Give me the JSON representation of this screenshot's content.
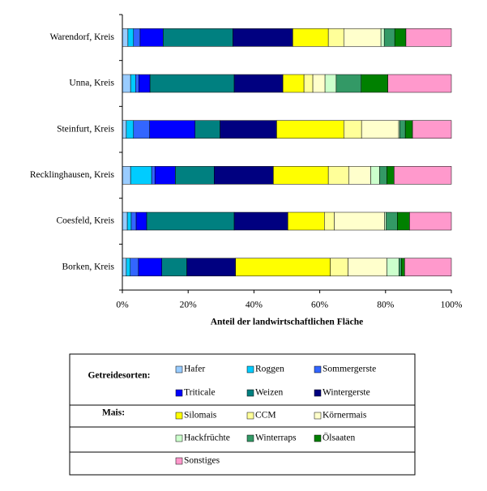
{
  "chart_data": {
    "type": "stacked-bar-horizontal",
    "categories": [
      "Warendorf, Kreis",
      "Unna, Kreis",
      "Steinfurt, Kreis",
      "Recklinghausen, Kreis",
      "Coesfeld, Kreis",
      "Borken, Kreis"
    ],
    "series": [
      {
        "name": "Hafer",
        "color": "#99ccff",
        "values": [
          1.7,
          2.5,
          1.2,
          2.5,
          1.5,
          1.2
        ]
      },
      {
        "name": "Roggen",
        "color": "#00ccff",
        "values": [
          1.7,
          1.5,
          2.2,
          6.4,
          1.2,
          1.2
        ]
      },
      {
        "name": "Sommergerste",
        "color": "#3366ff",
        "values": [
          2,
          1,
          4.9,
          1,
          1.5,
          2.5
        ]
      },
      {
        "name": "Triticale",
        "color": "#0000ff",
        "values": [
          7,
          3.4,
          13.8,
          6.2,
          3.2,
          7.1
        ]
      },
      {
        "name": "Weizen",
        "color": "#008080",
        "values": [
          21.2,
          25.6,
          7.6,
          11.8,
          26.6,
          7.6
        ]
      },
      {
        "name": "Wintergerste",
        "color": "#000080",
        "values": [
          18.2,
          14.8,
          17.2,
          18,
          16.3,
          14.8
        ]
      },
      {
        "name": "Silomais",
        "color": "#ffff00",
        "values": [
          10.8,
          6.4,
          20.4,
          16.7,
          11.1,
          28.8
        ]
      },
      {
        "name": "CCM",
        "color": "#ffff99",
        "values": [
          4.7,
          2.7,
          5.4,
          6.2,
          3,
          5.4
        ]
      },
      {
        "name": "Körnermais",
        "color": "#ffffcc",
        "values": [
          11.3,
          3.7,
          11.3,
          6.7,
          15.3,
          11.8
        ]
      },
      {
        "name": "Hackfrüchte",
        "color": "#ccffcc",
        "values": [
          1,
          3.4,
          0.3,
          2.7,
          0.5,
          3.7
        ]
      },
      {
        "name": "Winterraps",
        "color": "#339966",
        "values": [
          3.2,
          7.6,
          1.7,
          2.2,
          3.4,
          0.7
        ]
      },
      {
        "name": "Ölsaaten",
        "color": "#008000",
        "values": [
          3.4,
          8.1,
          2.2,
          2.2,
          3.7,
          1
        ]
      },
      {
        "name": "Sonstiges",
        "color": "#ff99cc",
        "values": [
          13.8,
          19.3,
          11.8,
          17.4,
          12.7,
          14.2
        ]
      }
    ],
    "xlim": [
      0,
      100
    ],
    "xticks": [
      {
        "value": 0,
        "label": "0%"
      },
      {
        "value": 20,
        "label": "20%"
      },
      {
        "value": 40,
        "label": "40%"
      },
      {
        "value": 60,
        "label": "60%"
      },
      {
        "value": 80,
        "label": "80%"
      },
      {
        "value": 100,
        "label": "100%"
      }
    ],
    "x_label": "Anteil der landwirtschaftlichen Fläche",
    "legend_group_labels": [
      "Getreidesorten:",
      "Mais:"
    ]
  }
}
